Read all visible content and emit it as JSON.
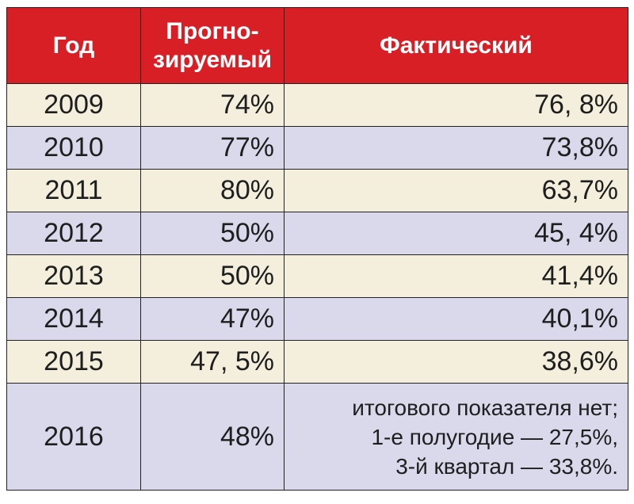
{
  "chart_data": {
    "type": "table",
    "columns": [
      "Год",
      "Прогно-зируемый",
      "Фактический"
    ],
    "header": {
      "year": "Год",
      "forecast_line1": "Прогно-",
      "forecast_line2": "зируемый",
      "actual": "Фактический"
    },
    "rows": [
      {
        "year": "2009",
        "forecast": "74%",
        "actual": "76, 8%"
      },
      {
        "year": "2010",
        "forecast": "77%",
        "actual": "73,8%"
      },
      {
        "year": "2011",
        "forecast": "80%",
        "actual": "63,7%"
      },
      {
        "year": "2012",
        "forecast": "50%",
        "actual": "45, 4%"
      },
      {
        "year": "2013",
        "forecast": "50%",
        "actual": "41,4%"
      },
      {
        "year": "2014",
        "forecast": "47%",
        "actual": "40,1%"
      },
      {
        "year": "2015",
        "forecast": "47, 5%",
        "actual": "38,6%"
      }
    ],
    "last_row": {
      "year": "2016",
      "forecast": "48%",
      "actual_lines": [
        "итогового показателя нет;",
        "1-е полугодие — 27,5%,",
        "3-й квартал — 33,8%."
      ]
    }
  },
  "colors": {
    "header": "#d81f26",
    "row_odd": "#f3efdc",
    "row_even": "#dad9ec"
  }
}
